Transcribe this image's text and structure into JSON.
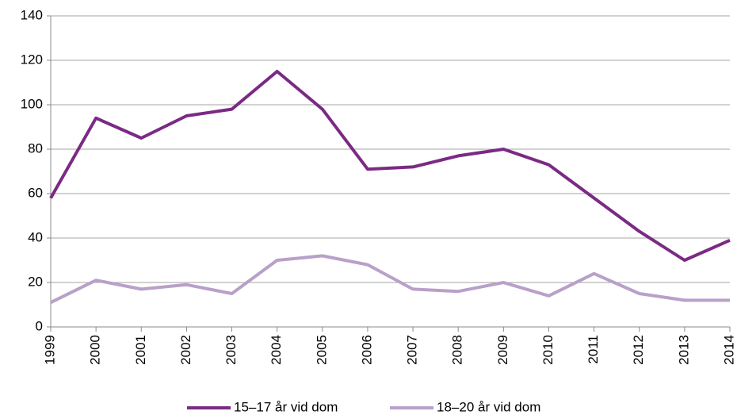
{
  "chart_data": {
    "type": "line",
    "x": [
      1999,
      2000,
      2001,
      2002,
      2003,
      2004,
      2005,
      2006,
      2007,
      2008,
      2009,
      2010,
      2011,
      2012,
      2013,
      2014
    ],
    "series": [
      {
        "name": "15–17 år vid dom",
        "color": "#7b2a84",
        "values": [
          58,
          94,
          85,
          95,
          98,
          115,
          98,
          71,
          72,
          77,
          80,
          73,
          58,
          43,
          30,
          39
        ]
      },
      {
        "name": "18–20 år vid dom",
        "color": "#b9a0c9",
        "values": [
          11,
          21,
          17,
          19,
          15,
          30,
          32,
          28,
          17,
          16,
          20,
          14,
          24,
          15,
          12,
          12
        ]
      }
    ],
    "xlim": [
      1999,
      2014
    ],
    "xticks": [
      1999,
      2000,
      2001,
      2002,
      2003,
      2004,
      2005,
      2006,
      2007,
      2008,
      2009,
      2010,
      2011,
      2012,
      2013,
      2014
    ],
    "ylim": [
      0,
      140
    ],
    "yticks": [
      0,
      20,
      40,
      60,
      80,
      100,
      120,
      140
    ],
    "grid": true,
    "legend": "bottom"
  }
}
